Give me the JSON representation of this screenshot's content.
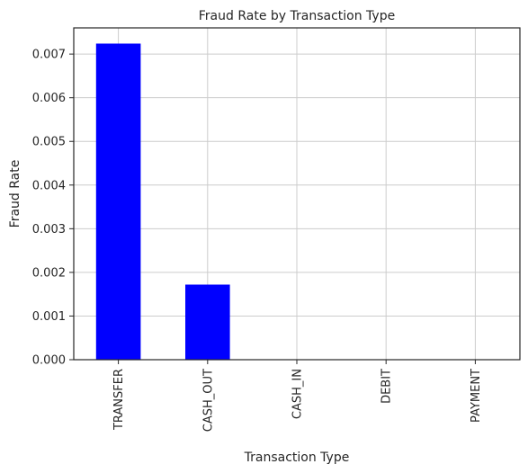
{
  "chart_data": {
    "type": "bar",
    "title": "Fraud Rate by Transaction Type",
    "xlabel": "Transaction Type",
    "ylabel": "Fraud Rate",
    "categories": [
      "TRANSFER",
      "CASH_OUT",
      "CASH_IN",
      "DEBIT",
      "PAYMENT"
    ],
    "values": [
      0.00724,
      0.00172,
      0.0,
      0.0,
      0.0
    ],
    "ylim": [
      0,
      0.0076
    ],
    "yticks": [
      "0.000",
      "0.001",
      "0.002",
      "0.003",
      "0.004",
      "0.005",
      "0.006",
      "0.007"
    ],
    "grid": true,
    "legend": "none",
    "bar_color": "#0000ff",
    "grid_color": "#cccccc",
    "axis_color": "#262626"
  }
}
